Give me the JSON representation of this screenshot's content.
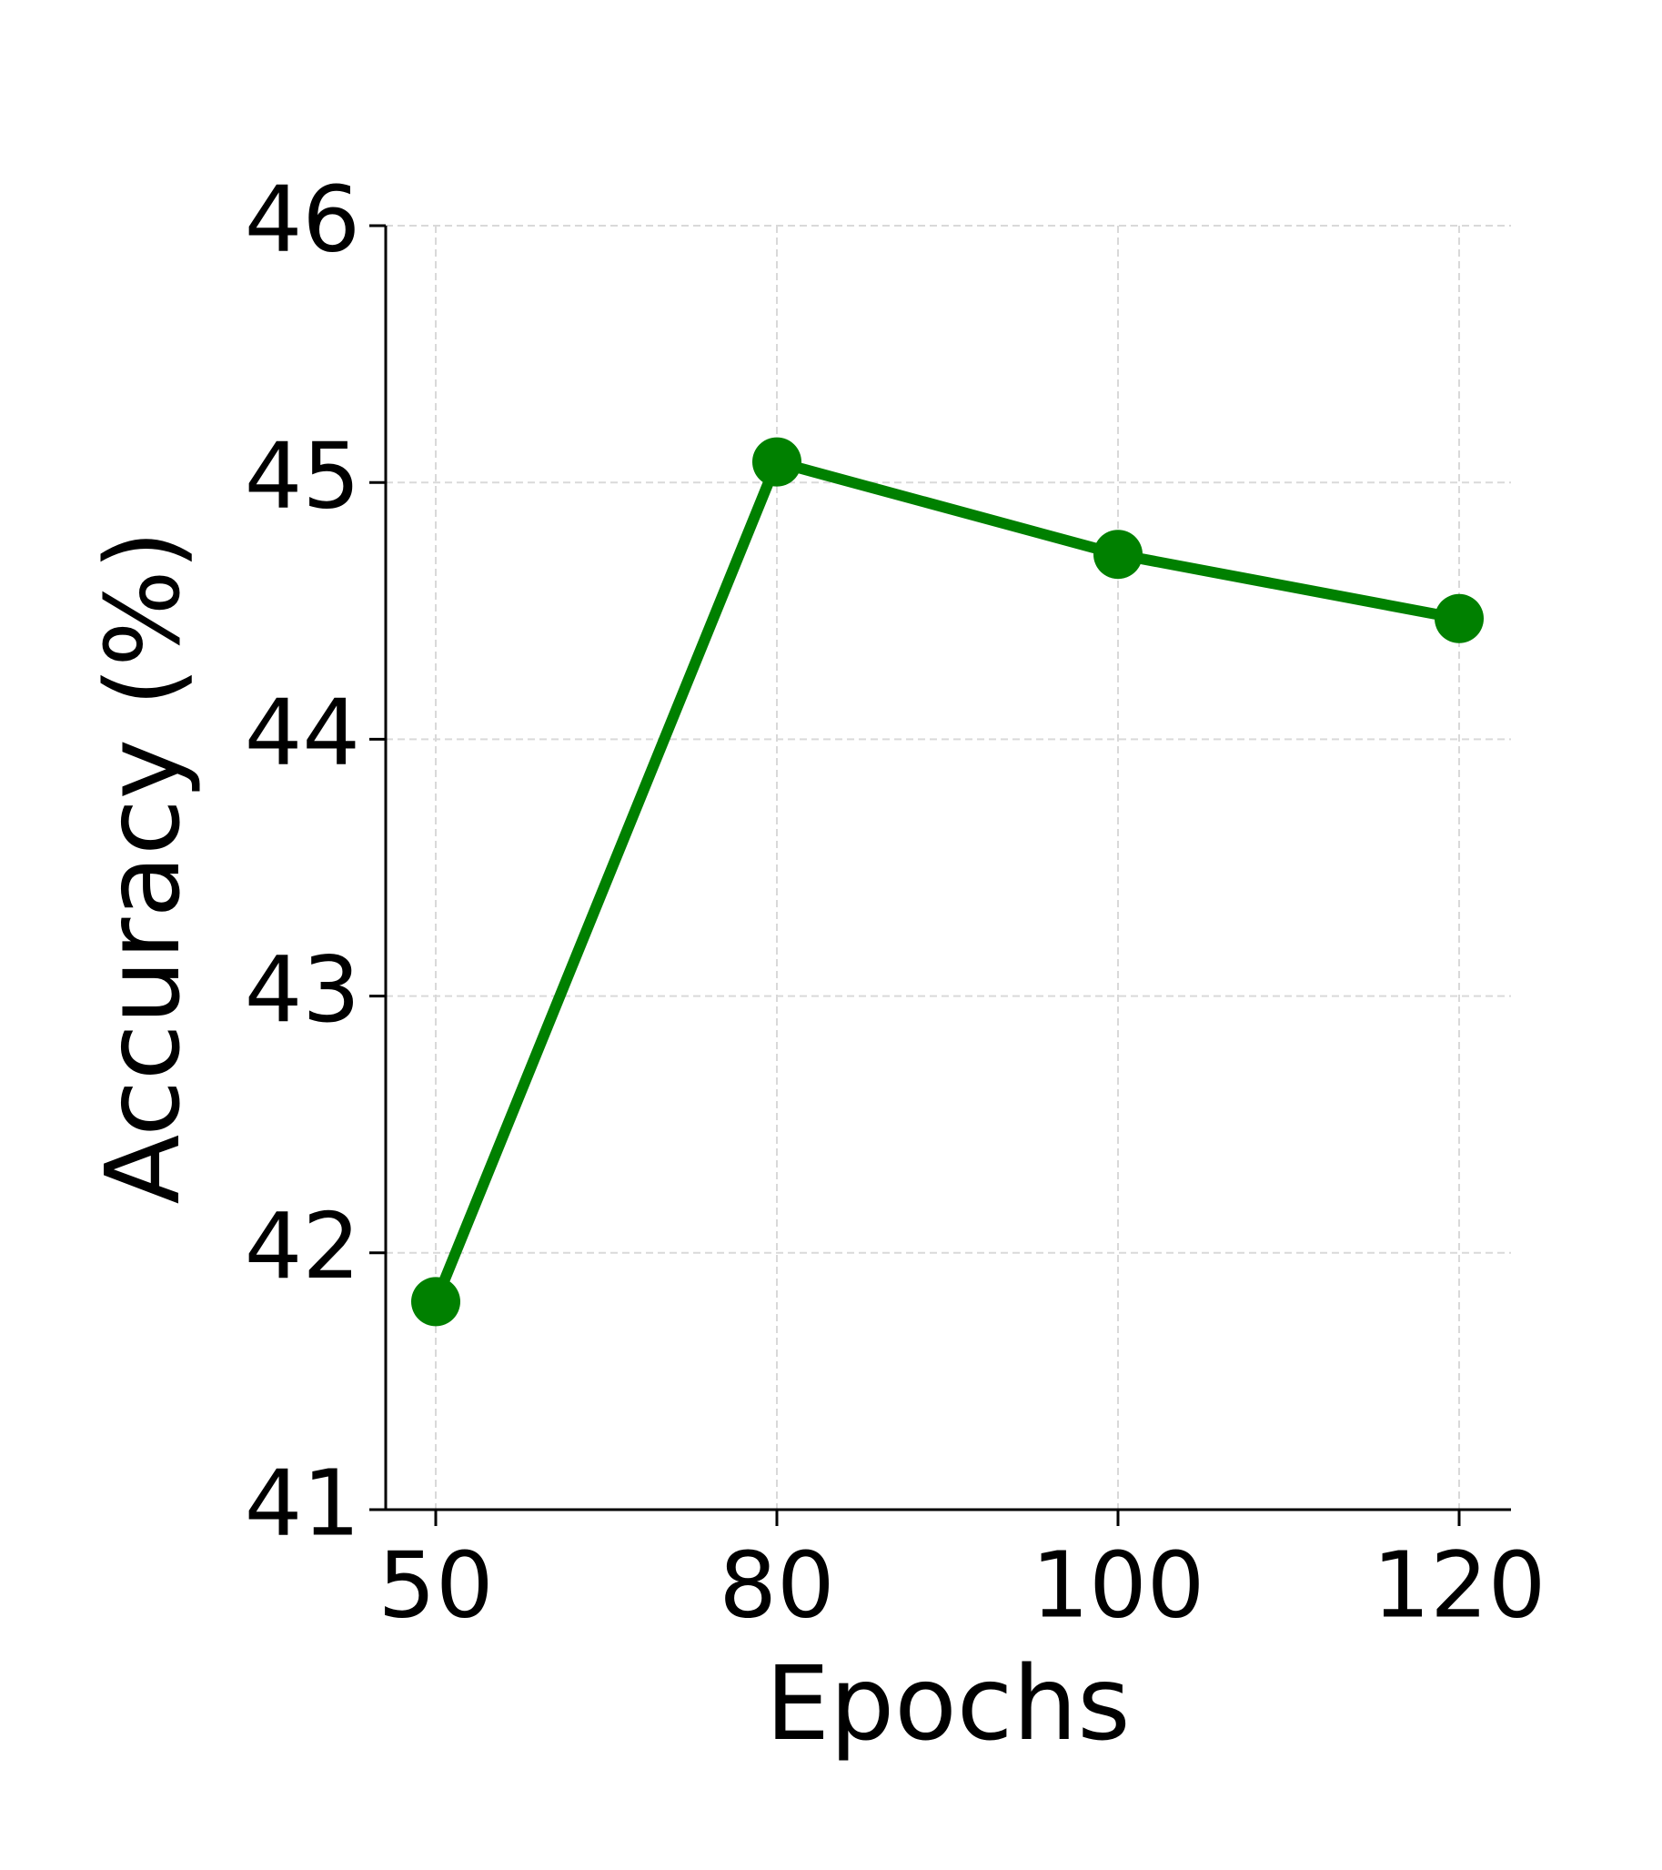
{
  "chart_data": {
    "type": "line",
    "xlabel": "Epochs",
    "ylabel": "Accuracy (%)",
    "categories": [
      "50",
      "80",
      "100",
      "120"
    ],
    "series": [
      {
        "name": "Accuracy",
        "color": "#008000",
        "values": [
          41.81,
          45.08,
          44.72,
          44.47
        ]
      }
    ],
    "ylim": [
      41,
      46
    ],
    "yticks": [
      41,
      42,
      43,
      44,
      45,
      46
    ],
    "grid": true
  }
}
